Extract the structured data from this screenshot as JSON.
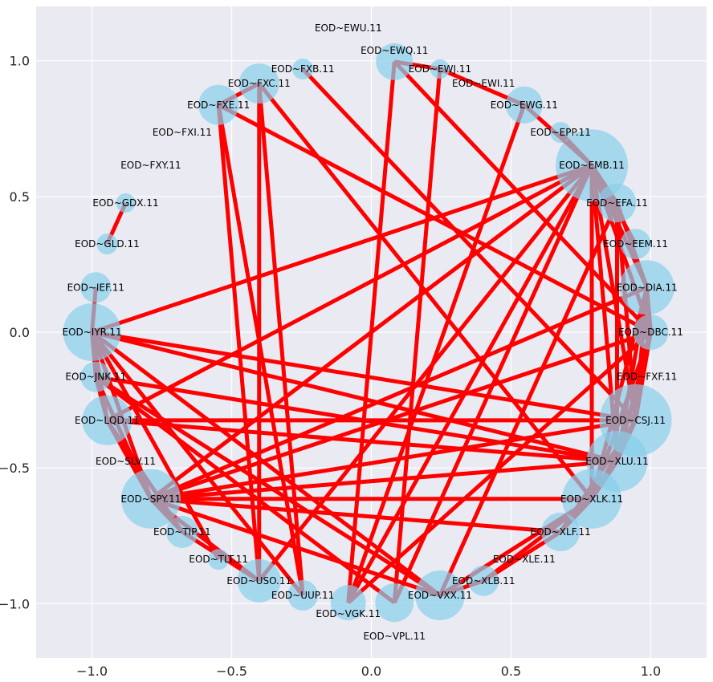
{
  "chart_data": {
    "type": "network",
    "layout": "circular",
    "xlim": [
      -1.2,
      1.2
    ],
    "ylim": [
      -1.2,
      1.2
    ],
    "xticks": [
      "−1.0",
      "−0.5",
      "0.0",
      "0.5",
      "1.0"
    ],
    "xtick_values": [
      -1.0,
      -0.5,
      0.0,
      0.5,
      1.0
    ],
    "yticks": [
      "−1.0",
      "−0.5",
      "0.0",
      "0.5",
      "1.0"
    ],
    "ytick_values": [
      -1.0,
      -0.5,
      0.0,
      0.5,
      1.0
    ],
    "grid": true,
    "colors": {
      "background": "#EAEAF2",
      "grid": "#FFFFFF",
      "node": "#87CEEB",
      "edge": "#FF0000"
    },
    "nodes": [
      {
        "label": "EOD~DBC.11",
        "size": 484
      },
      {
        "label": "EOD~DIA.11",
        "size": 1156
      },
      {
        "label": "EOD~EEM.11",
        "size": 361
      },
      {
        "label": "EOD~EFA.11",
        "size": 576
      },
      {
        "label": "EOD~EMB.11",
        "size": 2025
      },
      {
        "label": "EOD~EPP.11",
        "size": 169
      },
      {
        "label": "EOD~EWG.11",
        "size": 529
      },
      {
        "label": "EOD~EWI.11",
        "size": 0
      },
      {
        "label": "EOD~EWJ.11",
        "size": 144
      },
      {
        "label": "EOD~EWQ.11",
        "size": 529
      },
      {
        "label": "EOD~EWU.11",
        "size": 0
      },
      {
        "label": "EOD~FXB.11",
        "size": 169
      },
      {
        "label": "EOD~FXC.11",
        "size": 625
      },
      {
        "label": "EOD~FXE.11",
        "size": 625
      },
      {
        "label": "EOD~FXI.11",
        "size": 0
      },
      {
        "label": "EOD~FXY.11",
        "size": 0
      },
      {
        "label": "EOD~GDX.11",
        "size": 144
      },
      {
        "label": "EOD~GLD.11",
        "size": 169
      },
      {
        "label": "EOD~IEF.11",
        "size": 361
      },
      {
        "label": "EOD~IYR.11",
        "size": 1296
      },
      {
        "label": "EOD~JNK.11",
        "size": 361
      },
      {
        "label": "EOD~LQD.11",
        "size": 961
      },
      {
        "label": "EOD~SLV.11",
        "size": 0
      },
      {
        "label": "EOD~SPY.11",
        "size": 1369
      },
      {
        "label": "EOD~TIP.11",
        "size": 400
      },
      {
        "label": "EOD~TLT.11",
        "size": 169
      },
      {
        "label": "EOD~USO.11",
        "size": 729
      },
      {
        "label": "EOD~UUP.11",
        "size": 361
      },
      {
        "label": "EOD~VGK.11",
        "size": 484
      },
      {
        "label": "EOD~VPL.11",
        "size": 576
      },
      {
        "label": "EOD~VXX.11",
        "size": 961
      },
      {
        "label": "EOD~XLB.11",
        "size": 361
      },
      {
        "label": "EOD~XLE.11",
        "size": 0
      },
      {
        "label": "EOD~XLF.11",
        "size": 576
      },
      {
        "label": "EOD~XLK.11",
        "size": 1369
      },
      {
        "label": "EOD~XLU.11",
        "size": 1444
      },
      {
        "label": "EOD~CSJ.11",
        "size": 2025
      },
      {
        "label": "EOD~FXF.11",
        "size": 0
      }
    ],
    "edges": [
      [
        "EOD~FXC.11",
        "EOD~USO.11"
      ],
      [
        "EOD~FXC.11",
        "EOD~UUP.11"
      ],
      [
        "EOD~FXE.11",
        "EOD~USO.11"
      ],
      [
        "EOD~FXE.11",
        "EOD~UUP.11"
      ],
      [
        "EOD~FXE.11",
        "EOD~FXC.11"
      ],
      [
        "EOD~FXC.11",
        "EOD~XLK.11"
      ],
      [
        "EOD~FXE.11",
        "EOD~DBC.11"
      ],
      [
        "EOD~FXB.11",
        "EOD~CSJ.11"
      ],
      [
        "EOD~EWQ.11",
        "EOD~VGK.11"
      ],
      [
        "EOD~EWQ.11",
        "EOD~EWJ.11"
      ],
      [
        "EOD~EWQ.11",
        "EOD~DBC.11"
      ],
      [
        "EOD~EWJ.11",
        "EOD~VPL.11"
      ],
      [
        "EOD~EWJ.11",
        "EOD~EWG.11"
      ],
      [
        "EOD~EWG.11",
        "EOD~EMB.11"
      ],
      [
        "EOD~EWG.11",
        "EOD~VGK.11"
      ],
      [
        "EOD~EPP.11",
        "EOD~EMB.11"
      ],
      [
        "EOD~EMB.11",
        "EOD~IYR.11"
      ],
      [
        "EOD~EMB.11",
        "EOD~LQD.11"
      ],
      [
        "EOD~EMB.11",
        "EOD~SPY.11"
      ],
      [
        "EOD~EMB.11",
        "EOD~VGK.11"
      ],
      [
        "EOD~EMB.11",
        "EOD~VPL.11"
      ],
      [
        "EOD~EMB.11",
        "EOD~USO.11"
      ],
      [
        "EOD~EMB.11",
        "EOD~EFA.11"
      ],
      [
        "EOD~EMB.11",
        "EOD~EEM.11"
      ],
      [
        "EOD~EMB.11",
        "EOD~DIA.11"
      ],
      [
        "EOD~EMB.11",
        "EOD~DBC.11"
      ],
      [
        "EOD~EMB.11",
        "EOD~CSJ.11"
      ],
      [
        "EOD~EMB.11",
        "EOD~XLU.11"
      ],
      [
        "EOD~EMB.11",
        "EOD~XLK.11"
      ],
      [
        "EOD~EFA.11",
        "EOD~XLU.11"
      ],
      [
        "EOD~EFA.11",
        "EOD~CSJ.11"
      ],
      [
        "EOD~EFA.11",
        "EOD~DIA.11"
      ],
      [
        "EOD~EFA.11",
        "EOD~VXX.11"
      ],
      [
        "EOD~DIA.11",
        "EOD~SPY.11"
      ],
      [
        "EOD~DIA.11",
        "EOD~DBC.11"
      ],
      [
        "EOD~DIA.11",
        "EOD~CSJ.11"
      ],
      [
        "EOD~DIA.11",
        "EOD~XLU.11"
      ],
      [
        "EOD~DIA.11",
        "EOD~XLK.11"
      ],
      [
        "EOD~DBC.11",
        "EOD~SPY.11"
      ],
      [
        "EOD~DBC.11",
        "EOD~CSJ.11"
      ],
      [
        "EOD~DBC.11",
        "EOD~XLU.11"
      ],
      [
        "EOD~DBC.11",
        "EOD~XLK.11"
      ],
      [
        "EOD~DBC.11",
        "EOD~VGK.11"
      ],
      [
        "EOD~CSJ.11",
        "EOD~SPY.11"
      ],
      [
        "EOD~CSJ.11",
        "EOD~IYR.11"
      ],
      [
        "EOD~CSJ.11",
        "EOD~LQD.11"
      ],
      [
        "EOD~CSJ.11",
        "EOD~XLU.11"
      ],
      [
        "EOD~CSJ.11",
        "EOD~XLK.11"
      ],
      [
        "EOD~CSJ.11",
        "EOD~XLF.11"
      ],
      [
        "EOD~XLU.11",
        "EOD~SPY.11"
      ],
      [
        "EOD~XLU.11",
        "EOD~IYR.11"
      ],
      [
        "EOD~XLU.11",
        "EOD~LQD.11"
      ],
      [
        "EOD~XLU.11",
        "EOD~JNK.11"
      ],
      [
        "EOD~XLU.11",
        "EOD~XLK.11"
      ],
      [
        "EOD~XLK.11",
        "EOD~SPY.11"
      ],
      [
        "EOD~XLK.11",
        "EOD~XLF.11"
      ],
      [
        "EOD~XLK.11",
        "EOD~VXX.11"
      ],
      [
        "EOD~XLK.11",
        "EOD~XLB.11"
      ],
      [
        "EOD~XLF.11",
        "EOD~SPY.11"
      ],
      [
        "EOD~XLF.11",
        "EOD~XLB.11"
      ],
      [
        "EOD~VXX.11",
        "EOD~IYR.11"
      ],
      [
        "EOD~VXX.11",
        "EOD~JNK.11"
      ],
      [
        "EOD~VXX.11",
        "EOD~SPY.11"
      ],
      [
        "EOD~VXX.11",
        "EOD~XLB.11"
      ],
      [
        "EOD~IYR.11",
        "EOD~IEF.11"
      ],
      [
        "EOD~IYR.11",
        "EOD~JNK.11"
      ],
      [
        "EOD~IYR.11",
        "EOD~LQD.11"
      ],
      [
        "EOD~IYR.11",
        "EOD~SPY.11"
      ],
      [
        "EOD~IYR.11",
        "EOD~TLT.11"
      ],
      [
        "EOD~IYR.11",
        "EOD~UUP.11"
      ],
      [
        "EOD~JNK.11",
        "EOD~LQD.11"
      ],
      [
        "EOD~JNK.11",
        "EOD~SPY.11"
      ],
      [
        "EOD~JNK.11",
        "EOD~VPL.11"
      ],
      [
        "EOD~LQD.11",
        "EOD~SPY.11"
      ],
      [
        "EOD~LQD.11",
        "EOD~TIP.11"
      ],
      [
        "EOD~SPY.11",
        "EOD~TIP.11"
      ],
      [
        "EOD~SPY.11",
        "EOD~USO.11"
      ],
      [
        "EOD~GDX.11",
        "EOD~GLD.11"
      ],
      [
        "EOD~TIP.11",
        "EOD~USO.11"
      ]
    ]
  }
}
